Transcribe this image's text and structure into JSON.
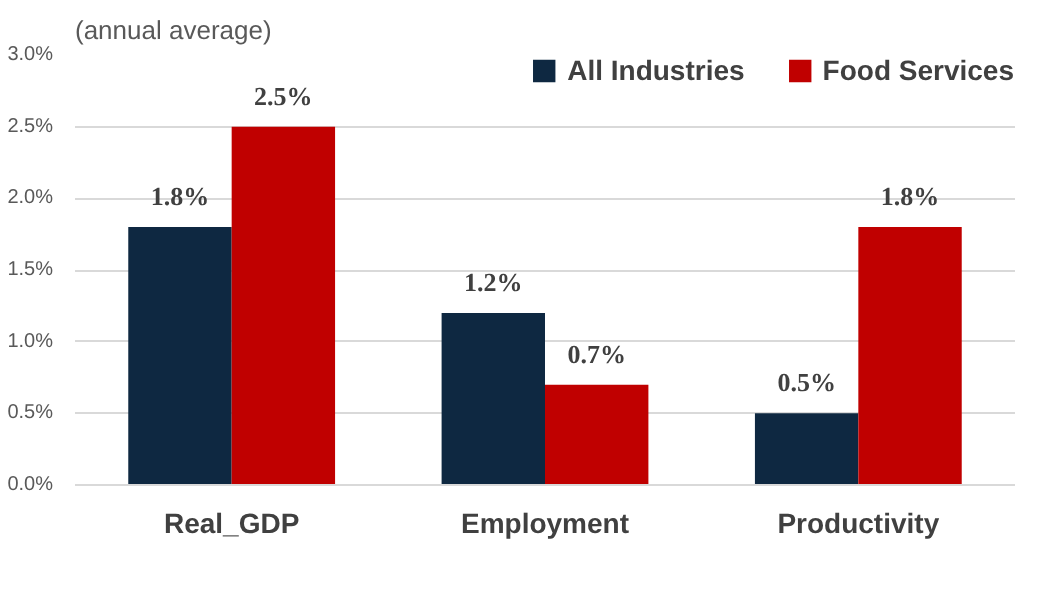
{
  "chart_data": {
    "type": "bar",
    "ylabel": "(annual average)",
    "categories": [
      "Real_GDP",
      "Employment",
      "Productivity"
    ],
    "series": [
      {
        "name": "All Industries",
        "color": "#0e2841",
        "values": [
          1.8,
          1.2,
          0.5
        ],
        "value_labels": [
          "1.8%",
          "1.2%",
          "0.5%"
        ]
      },
      {
        "name": "Food Services",
        "color": "#c00000",
        "values": [
          2.5,
          0.7,
          1.8
        ],
        "value_labels": [
          "2.5%",
          "0.7%",
          "1.8%"
        ]
      }
    ],
    "ylim": [
      0,
      3.0
    ],
    "yticks": [
      {
        "value": 0,
        "label": "0.0%"
      },
      {
        "value": 0.5,
        "label": "0.5%"
      },
      {
        "value": 1.0,
        "label": "1.0%"
      },
      {
        "value": 1.5,
        "label": "1.5%"
      },
      {
        "value": 2.0,
        "label": "2.0%"
      },
      {
        "value": 2.5,
        "label": "2.5%"
      },
      {
        "value": 3.0,
        "label": "3.0%"
      }
    ],
    "grid": "y",
    "legend": "top right"
  }
}
